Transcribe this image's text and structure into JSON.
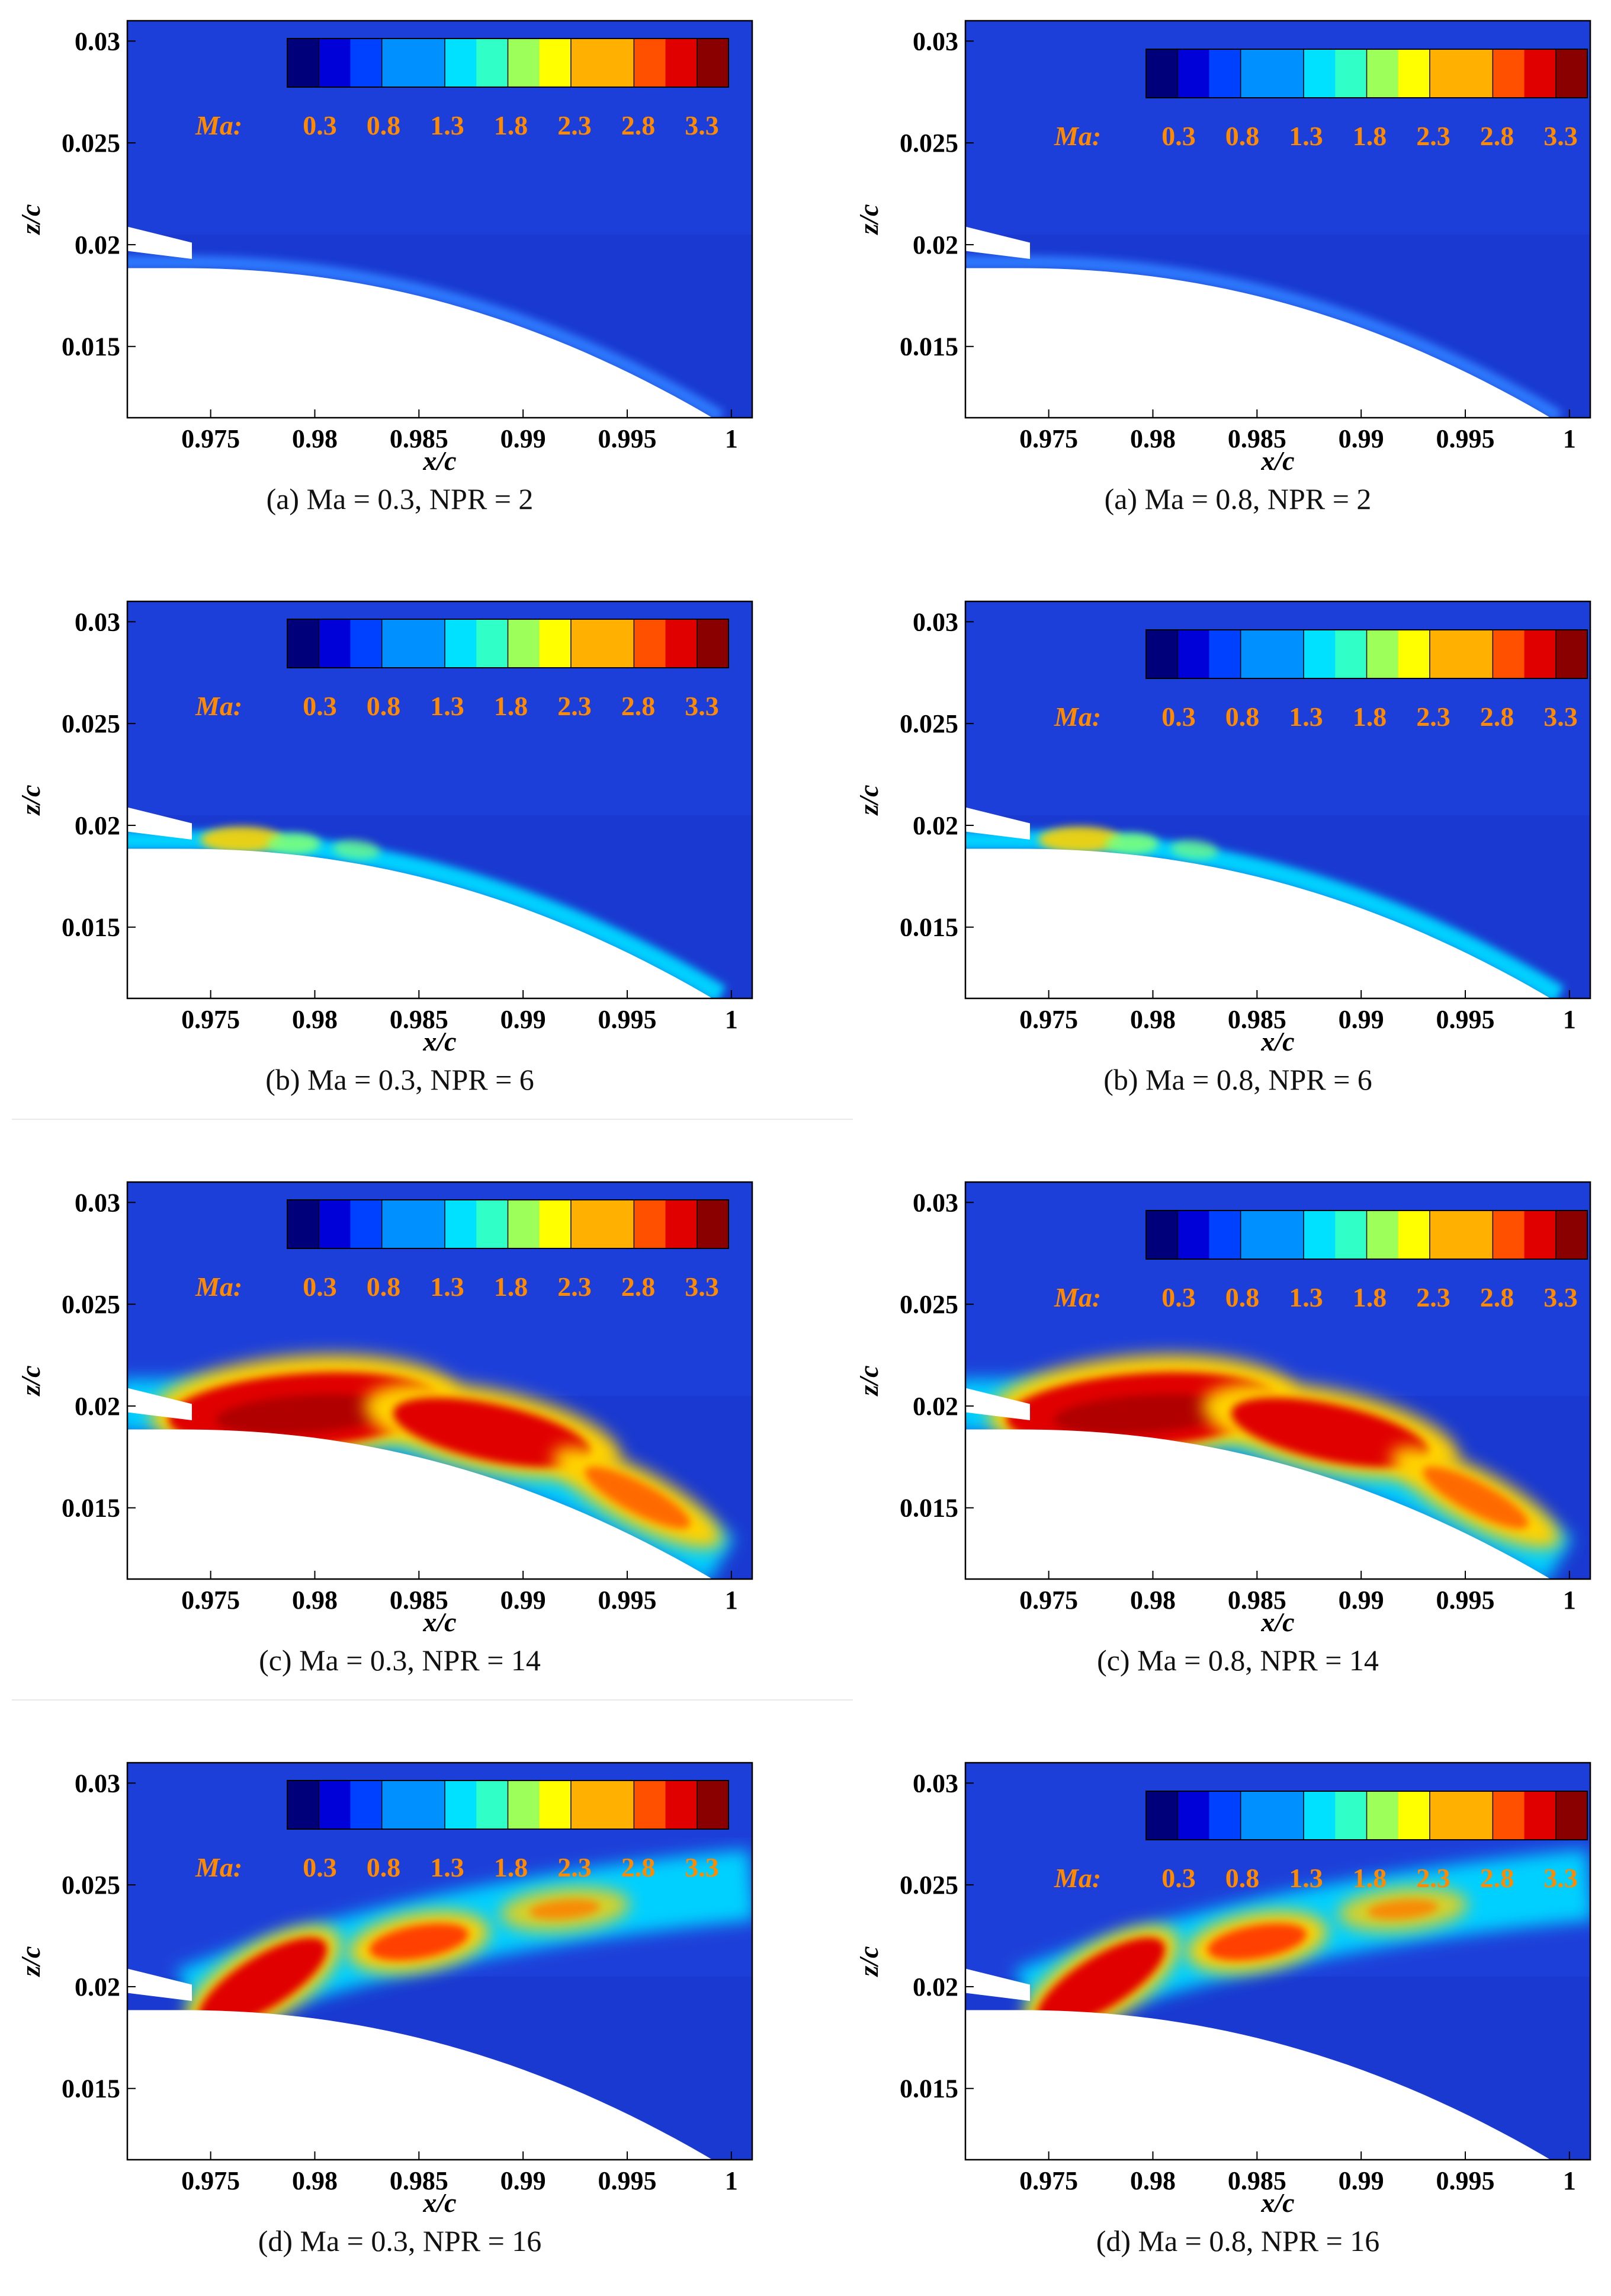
{
  "chart_data": [
    {
      "type": "heatmap",
      "position": "row1-left",
      "caption": "(a) Ma = 0.3, NPR = 2",
      "xlabel": "x/c",
      "ylabel": "z/c",
      "colorbar_title": "Ma:",
      "xticks": [
        "0.975",
        "0.98",
        "0.985",
        "0.99",
        "0.995",
        "1"
      ],
      "yticks": [
        "0.03",
        "0.025",
        "0.02",
        "0.015"
      ],
      "colorbar_ticks": [
        "0.3",
        "0.8",
        "1.3",
        "1.8",
        "2.3",
        "2.8",
        "3.3"
      ],
      "xlim": [
        0.971,
        1.001
      ],
      "ylim": [
        0.0115,
        0.031
      ],
      "jet": "attached",
      "peak_mach": 0.9
    },
    {
      "type": "heatmap",
      "position": "row1-right",
      "caption": "(a) Ma = 0.8, NPR = 2",
      "xlabel": "x/c",
      "ylabel": "z/c",
      "colorbar_title": "Ma:",
      "xticks": [
        "0.975",
        "0.98",
        "0.985",
        "0.99",
        "0.995",
        "1"
      ],
      "yticks": [
        "0.03",
        "0.025",
        "0.02",
        "0.015"
      ],
      "colorbar_ticks": [
        "0.3",
        "0.8",
        "1.3",
        "1.8",
        "2.3",
        "2.8",
        "3.3"
      ],
      "xlim": [
        0.971,
        1.001
      ],
      "ylim": [
        0.0115,
        0.031
      ],
      "jet": "attached",
      "peak_mach": 0.8
    },
    {
      "type": "heatmap",
      "position": "row2-left",
      "caption": "(b) Ma = 0.3, NPR = 6",
      "xlabel": "x/c",
      "ylabel": "z/c",
      "colorbar_title": "Ma:",
      "xticks": [
        "0.975",
        "0.98",
        "0.985",
        "0.99",
        "0.995",
        "1"
      ],
      "yticks": [
        "0.03",
        "0.025",
        "0.02",
        "0.015"
      ],
      "colorbar_ticks": [
        "0.3",
        "0.8",
        "1.3",
        "1.8",
        "2.3",
        "2.8",
        "3.3"
      ],
      "xlim": [
        0.971,
        1.001
      ],
      "ylim": [
        0.0115,
        0.031
      ],
      "jet": "attached",
      "peak_mach": 2.0
    },
    {
      "type": "heatmap",
      "position": "row2-right",
      "caption": "(b) Ma = 0.8, NPR = 6",
      "xlabel": "x/c",
      "ylabel": "z/c",
      "colorbar_title": "Ma:",
      "xticks": [
        "0.975",
        "0.98",
        "0.985",
        "0.99",
        "0.995",
        "1"
      ],
      "yticks": [
        "0.03",
        "0.025",
        "0.02",
        "0.015"
      ],
      "colorbar_ticks": [
        "0.3",
        "0.8",
        "1.3",
        "1.8",
        "2.3",
        "2.8",
        "3.3"
      ],
      "xlim": [
        0.971,
        1.001
      ],
      "ylim": [
        0.0115,
        0.031
      ],
      "jet": "attached",
      "peak_mach": 2.0
    },
    {
      "type": "heatmap",
      "position": "row3-left",
      "caption": "(c) Ma = 0.3, NPR = 14",
      "xlabel": "x/c",
      "ylabel": "z/c",
      "colorbar_title": "Ma:",
      "xticks": [
        "0.975",
        "0.98",
        "0.985",
        "0.99",
        "0.995",
        "1"
      ],
      "yticks": [
        "0.03",
        "0.025",
        "0.02",
        "0.015"
      ],
      "colorbar_ticks": [
        "0.3",
        "0.8",
        "1.3",
        "1.8",
        "2.3",
        "2.8",
        "3.3"
      ],
      "xlim": [
        0.971,
        1.001
      ],
      "ylim": [
        0.0115,
        0.031
      ],
      "jet": "attached",
      "peak_mach": 3.5
    },
    {
      "type": "heatmap",
      "position": "row3-right",
      "caption": "(c) Ma = 0.8, NPR = 14",
      "xlabel": "x/c",
      "ylabel": "z/c",
      "colorbar_title": "Ma:",
      "xticks": [
        "0.975",
        "0.98",
        "0.985",
        "0.99",
        "0.995",
        "1"
      ],
      "yticks": [
        "0.03",
        "0.025",
        "0.02",
        "0.015"
      ],
      "colorbar_ticks": [
        "0.3",
        "0.8",
        "1.3",
        "1.8",
        "2.3",
        "2.8",
        "3.3"
      ],
      "xlim": [
        0.971,
        1.001
      ],
      "ylim": [
        0.0115,
        0.031
      ],
      "jet": "attached",
      "peak_mach": 3.5
    },
    {
      "type": "heatmap",
      "position": "row4-left",
      "caption": "(d) Ma = 0.3, NPR = 16",
      "xlabel": "x/c",
      "ylabel": "z/c",
      "colorbar_title": "Ma:",
      "xticks": [
        "0.975",
        "0.98",
        "0.985",
        "0.99",
        "0.995",
        "1"
      ],
      "yticks": [
        "0.03",
        "0.025",
        "0.02",
        "0.015"
      ],
      "colorbar_ticks": [
        "0.3",
        "0.8",
        "1.3",
        "1.8",
        "2.3",
        "2.8",
        "3.3"
      ],
      "xlim": [
        0.971,
        1.001
      ],
      "ylim": [
        0.0115,
        0.031
      ],
      "jet": "separated",
      "peak_mach": 3.3
    },
    {
      "type": "heatmap",
      "position": "row4-right",
      "caption": "(d) Ma = 0.8, NPR = 16",
      "xlabel": "x/c",
      "ylabel": "z/c",
      "colorbar_title": "Ma:",
      "xticks": [
        "0.975",
        "0.98",
        "0.985",
        "0.99",
        "0.995",
        "1"
      ],
      "yticks": [
        "0.03",
        "0.025",
        "0.02",
        "0.015"
      ],
      "colorbar_ticks": [
        "0.3",
        "0.8",
        "1.3",
        "1.8",
        "2.3",
        "2.8",
        "3.3"
      ],
      "xlim": [
        0.971,
        1.001
      ],
      "ylim": [
        0.0115,
        0.031
      ],
      "jet": "separated",
      "peak_mach": 3.3
    }
  ],
  "colors": {
    "background_flow": "#1d3fd9",
    "jet_low": "#00d0ff",
    "jet_mid": "#ffd200",
    "jet_high": "#e00000",
    "jet_core": "#b00000",
    "colorbar_label": "#ff8a00"
  }
}
